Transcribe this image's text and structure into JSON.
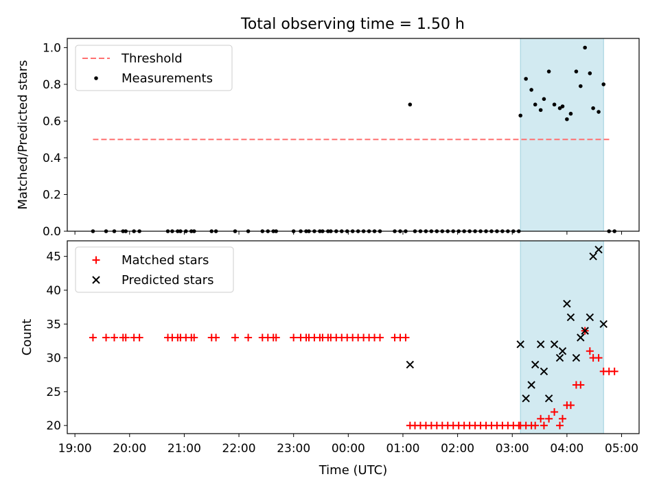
{
  "figure_title": "Total observing time = 1.50 h",
  "colors": {
    "threshold": "#ff7070",
    "measurement": "#000000",
    "matched": "#ff0000",
    "predicted": "#000000",
    "span_fill": "#add8e6"
  },
  "chart_data": [
    {
      "type": "scatter",
      "panel": "top",
      "title": "Total observing time = 1.50 h",
      "xlabel": "",
      "ylabel": "Matched/Predicted stars",
      "xlim": [
        "19:00",
        "05:00"
      ],
      "ylim": [
        0.0,
        1.05
      ],
      "x_unit": "hours since 19:00 UTC",
      "yticks": [
        "0.0",
        "0.2",
        "0.4",
        "0.6",
        "0.8",
        "1.0"
      ],
      "yticks_values": [
        0.0,
        0.2,
        0.4,
        0.6,
        0.8,
        1.0
      ],
      "legend": {
        "placement": "top-left",
        "entries": [
          "Threshold",
          "Measurements"
        ]
      },
      "grid": false,
      "threshold": {
        "name": "Threshold",
        "y": 0.5,
        "x_start": 0.33,
        "x_end": 9.82,
        "style": "dashed"
      },
      "shaded_span": {
        "x_start": 8.15,
        "x_end": 9.67
      },
      "series": [
        {
          "name": "Measurements",
          "marker": "dot",
          "x": [
            0.33,
            0.57,
            0.72,
            0.88,
            0.93,
            1.08,
            1.18,
            1.7,
            1.78,
            1.88,
            1.93,
            2.03,
            2.13,
            2.18,
            2.5,
            2.58,
            2.93,
            3.17,
            3.43,
            3.53,
            3.63,
            3.68,
            4.0,
            4.13,
            4.23,
            4.28,
            4.38,
            4.48,
            4.53,
            4.63,
            4.68,
            4.78,
            4.88,
            4.98,
            5.08,
            5.18,
            5.28,
            5.38,
            5.48,
            5.58,
            5.85,
            5.95,
            6.05,
            6.13,
            6.22,
            6.32,
            6.42,
            6.52,
            6.62,
            6.72,
            6.82,
            6.92,
            7.02,
            7.12,
            7.22,
            7.32,
            7.42,
            7.52,
            7.62,
            7.72,
            7.82,
            7.92,
            8.02,
            8.12,
            8.15,
            8.25,
            8.35,
            8.42,
            8.52,
            8.58,
            8.67,
            8.77,
            8.87,
            8.92,
            9.0,
            9.07,
            9.17,
            9.25,
            9.33,
            9.42,
            9.48,
            9.58,
            9.67,
            9.77,
            9.87
          ],
          "y": [
            0,
            0,
            0,
            0,
            0,
            0,
            0,
            0,
            0,
            0,
            0,
            0,
            0,
            0,
            0,
            0,
            0,
            0,
            0,
            0,
            0,
            0,
            0,
            0,
            0,
            0,
            0,
            0,
            0,
            0,
            0,
            0,
            0,
            0,
            0,
            0,
            0,
            0,
            0,
            0,
            0,
            0,
            0,
            0.69,
            0,
            0,
            0,
            0,
            0,
            0,
            0,
            0,
            0,
            0,
            0,
            0,
            0,
            0,
            0,
            0,
            0,
            0,
            0,
            0,
            0.63,
            0.83,
            0.77,
            0.69,
            0.66,
            0.72,
            0.87,
            0.69,
            0.67,
            0.68,
            0.61,
            0.64,
            0.87,
            0.79,
            1.0,
            0.86,
            0.67,
            0.65,
            0.8,
            0,
            0
          ]
        }
      ]
    },
    {
      "type": "scatter",
      "panel": "bottom",
      "title": "",
      "xlabel": "Time (UTC)",
      "ylabel": "Count",
      "xlim": [
        "19:00",
        "05:00"
      ],
      "ylim": [
        18.8,
        47.3
      ],
      "x_unit": "hours since 19:00 UTC",
      "xticks": [
        "19:00",
        "20:00",
        "21:00",
        "22:00",
        "23:00",
        "00:00",
        "01:00",
        "02:00",
        "03:00",
        "04:00",
        "05:00"
      ],
      "xticks_values": [
        0,
        1,
        2,
        3,
        4,
        5,
        6,
        7,
        8,
        9,
        10
      ],
      "yticks": [
        "20",
        "25",
        "30",
        "35",
        "40",
        "45"
      ],
      "yticks_values": [
        20,
        25,
        30,
        35,
        40,
        45
      ],
      "legend": {
        "placement": "top-left",
        "entries": [
          "Matched stars",
          "Predicted stars"
        ]
      },
      "grid": false,
      "shaded_span": {
        "x_start": 8.15,
        "x_end": 9.67
      },
      "series": [
        {
          "name": "Matched stars",
          "marker": "plus",
          "x": [
            0.33,
            0.57,
            0.72,
            0.88,
            0.93,
            1.08,
            1.18,
            1.7,
            1.78,
            1.88,
            1.93,
            2.03,
            2.13,
            2.18,
            2.5,
            2.58,
            2.93,
            3.17,
            3.43,
            3.53,
            3.63,
            3.68,
            4.0,
            4.13,
            4.23,
            4.28,
            4.38,
            4.48,
            4.53,
            4.63,
            4.68,
            4.78,
            4.88,
            4.98,
            5.08,
            5.18,
            5.28,
            5.38,
            5.48,
            5.58,
            5.85,
            5.95,
            6.05,
            6.13,
            6.22,
            6.32,
            6.42,
            6.52,
            6.62,
            6.72,
            6.82,
            6.92,
            7.02,
            7.12,
            7.22,
            7.32,
            7.42,
            7.52,
            7.62,
            7.72,
            7.82,
            7.92,
            8.02,
            8.12,
            8.15,
            8.25,
            8.35,
            8.42,
            8.52,
            8.58,
            8.67,
            8.77,
            8.87,
            8.92,
            9.0,
            9.07,
            9.17,
            9.25,
            9.33,
            9.42,
            9.48,
            9.58,
            9.67,
            9.77,
            9.87
          ],
          "y": [
            33,
            33,
            33,
            33,
            33,
            33,
            33,
            33,
            33,
            33,
            33,
            33,
            33,
            33,
            33,
            33,
            33,
            33,
            33,
            33,
            33,
            33,
            33,
            33,
            33,
            33,
            33,
            33,
            33,
            33,
            33,
            33,
            33,
            33,
            33,
            33,
            33,
            33,
            33,
            33,
            33,
            33,
            33,
            20,
            20,
            20,
            20,
            20,
            20,
            20,
            20,
            20,
            20,
            20,
            20,
            20,
            20,
            20,
            20,
            20,
            20,
            20,
            20,
            20,
            20,
            20,
            20,
            20,
            21,
            20,
            21,
            22,
            20,
            21,
            23,
            23,
            26,
            26,
            34,
            31,
            30,
            30,
            28,
            28,
            28
          ]
        },
        {
          "name": "Predicted stars",
          "marker": "x",
          "x": [
            6.13,
            8.15,
            8.25,
            8.35,
            8.42,
            8.52,
            8.58,
            8.67,
            8.77,
            8.87,
            8.92,
            9.0,
            9.07,
            9.17,
            9.25,
            9.33,
            9.42,
            9.48,
            9.58,
            9.67
          ],
          "y": [
            29,
            32,
            24,
            26,
            29,
            32,
            28,
            24,
            32,
            30,
            31,
            38,
            36,
            30,
            33,
            34,
            36,
            45,
            46,
            35
          ]
        }
      ]
    }
  ]
}
